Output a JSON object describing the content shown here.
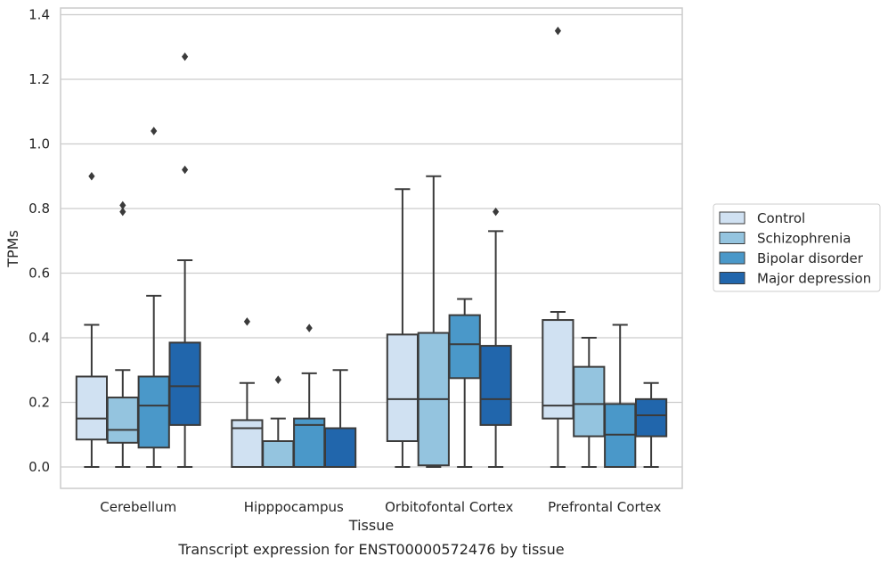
{
  "caption": "Transcript expression for ENST00000572476 by tissue",
  "chart_data": {
    "type": "box",
    "xlabel": "Tissue",
    "ylabel": "TPMs",
    "ylim": [
      -0.065,
      1.42
    ],
    "yticks": [
      "0.0",
      "0.2",
      "0.4",
      "0.6",
      "0.8",
      "1.0",
      "1.2",
      "1.4"
    ],
    "categories": [
      "Cerebellum",
      "Hipppocampus",
      "Orbitofontal Cortex",
      "Prefrontal Cortex"
    ],
    "grid": "horizontal",
    "legend_position": "right",
    "colors": [
      "#d0e1f2",
      "#94c4df",
      "#4a98c9",
      "#2166ac"
    ],
    "series": [
      {
        "name": "Control",
        "boxes": [
          {
            "whislo": 0.0,
            "q1": 0.085,
            "med": 0.15,
            "q3": 0.28,
            "whishi": 0.44,
            "fliers": [
              0.9
            ]
          },
          {
            "whislo": 0.0,
            "q1": 0.0,
            "med": 0.12,
            "q3": 0.145,
            "whishi": 0.26,
            "fliers": [
              0.45
            ]
          },
          {
            "whislo": 0.0,
            "q1": 0.08,
            "med": 0.21,
            "q3": 0.41,
            "whishi": 0.86,
            "fliers": []
          },
          {
            "whislo": 0.0,
            "q1": 0.15,
            "med": 0.19,
            "q3": 0.455,
            "whishi": 0.48,
            "fliers": [
              1.35
            ]
          }
        ]
      },
      {
        "name": "Schizophrenia",
        "boxes": [
          {
            "whislo": 0.0,
            "q1": 0.075,
            "med": 0.115,
            "q3": 0.215,
            "whishi": 0.3,
            "fliers": [
              0.79,
              0.81
            ]
          },
          {
            "whislo": 0.0,
            "q1": 0.0,
            "med": 0.0,
            "q3": 0.08,
            "whishi": 0.15,
            "fliers": [
              0.27
            ]
          },
          {
            "whislo": 0.0,
            "q1": 0.005,
            "med": 0.21,
            "q3": 0.415,
            "whishi": 0.9,
            "fliers": []
          },
          {
            "whislo": 0.0,
            "q1": 0.095,
            "med": 0.195,
            "q3": 0.31,
            "whishi": 0.4,
            "fliers": []
          }
        ]
      },
      {
        "name": "Bipolar disorder",
        "boxes": [
          {
            "whislo": 0.0,
            "q1": 0.06,
            "med": 0.19,
            "q3": 0.28,
            "whishi": 0.53,
            "fliers": [
              1.04
            ]
          },
          {
            "whislo": 0.0,
            "q1": 0.0,
            "med": 0.13,
            "q3": 0.15,
            "whishi": 0.29,
            "fliers": [
              0.43
            ]
          },
          {
            "whislo": 0.0,
            "q1": 0.275,
            "med": 0.38,
            "q3": 0.47,
            "whishi": 0.52,
            "fliers": []
          },
          {
            "whislo": 0.0,
            "q1": 0.0,
            "med": 0.1,
            "q3": 0.195,
            "whishi": 0.44,
            "fliers": []
          }
        ]
      },
      {
        "name": "Major depression",
        "boxes": [
          {
            "whislo": 0.0,
            "q1": 0.13,
            "med": 0.25,
            "q3": 0.385,
            "whishi": 0.64,
            "fliers": [
              0.92,
              1.27
            ]
          },
          {
            "whislo": 0.0,
            "q1": 0.0,
            "med": 0.12,
            "q3": 0.12,
            "whishi": 0.3,
            "fliers": []
          },
          {
            "whislo": 0.0,
            "q1": 0.13,
            "med": 0.21,
            "q3": 0.375,
            "whishi": 0.73,
            "fliers": [
              0.79
            ]
          },
          {
            "whislo": 0.0,
            "q1": 0.095,
            "med": 0.16,
            "q3": 0.21,
            "whishi": 0.26,
            "fliers": []
          }
        ]
      }
    ]
  }
}
